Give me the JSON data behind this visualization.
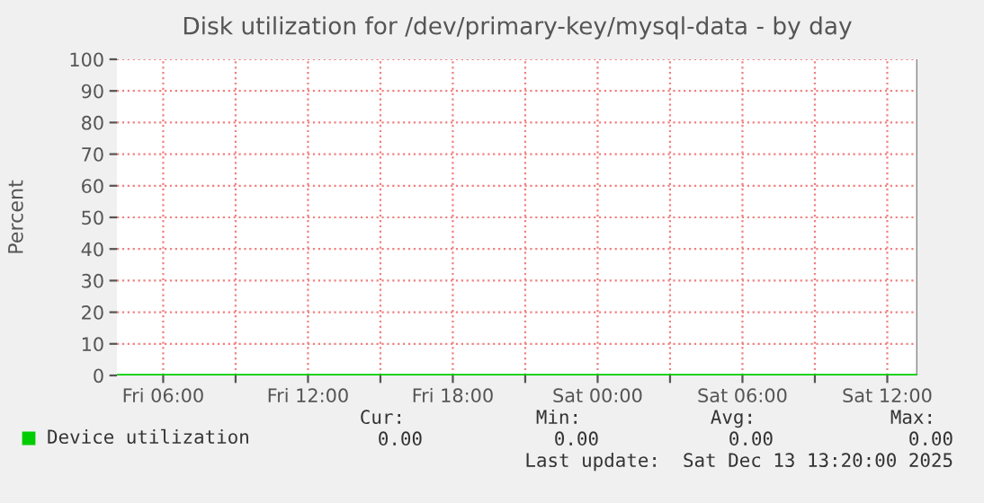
{
  "chart_data": {
    "type": "line",
    "title": "Disk utilization for /dev/primary-key/mysql-data - by day",
    "ylabel": "Percent",
    "x": [
      "2025-12-12T04:05",
      "2025-12-12T12:00",
      "2025-12-12T20:00",
      "2025-12-13T04:00",
      "2025-12-13T13:15"
    ],
    "series": [
      {
        "name": "Device utilization",
        "color": "#00cc00",
        "values": [
          0,
          0,
          0,
          0,
          0
        ]
      }
    ],
    "xlim": [
      "2025-12-12T04:05",
      "2025-12-13T13:15"
    ],
    "xticks": [
      {
        "value": "2025-12-12T06:00",
        "label": "Fri 06:00"
      },
      {
        "value": "2025-12-12T09:00",
        "label": null
      },
      {
        "value": "2025-12-12T12:00",
        "label": "Fri 12:00"
      },
      {
        "value": "2025-12-12T15:00",
        "label": null
      },
      {
        "value": "2025-12-12T18:00",
        "label": "Fri 18:00"
      },
      {
        "value": "2025-12-12T21:00",
        "label": null
      },
      {
        "value": "2025-12-13T00:00",
        "label": "Sat 00:00"
      },
      {
        "value": "2025-12-13T03:00",
        "label": null
      },
      {
        "value": "2025-12-13T06:00",
        "label": "Sat 06:00"
      },
      {
        "value": "2025-12-13T09:00",
        "label": null
      },
      {
        "value": "2025-12-13T12:00",
        "label": "Sat 12:00"
      }
    ],
    "ylim": [
      0,
      100
    ],
    "yticks": [
      0,
      10,
      20,
      30,
      40,
      50,
      60,
      70,
      80,
      90,
      100
    ],
    "grid": true,
    "legend": "bottom left",
    "marker": "none",
    "line_style": "solid",
    "annotations": [
      "Cur:",
      "Min:",
      "Avg:",
      "Max:",
      "0.00",
      "0.00",
      "0.00",
      "0.00",
      "Last update:  Sat Dec 13 13:20:00 2025"
    ]
  }
}
